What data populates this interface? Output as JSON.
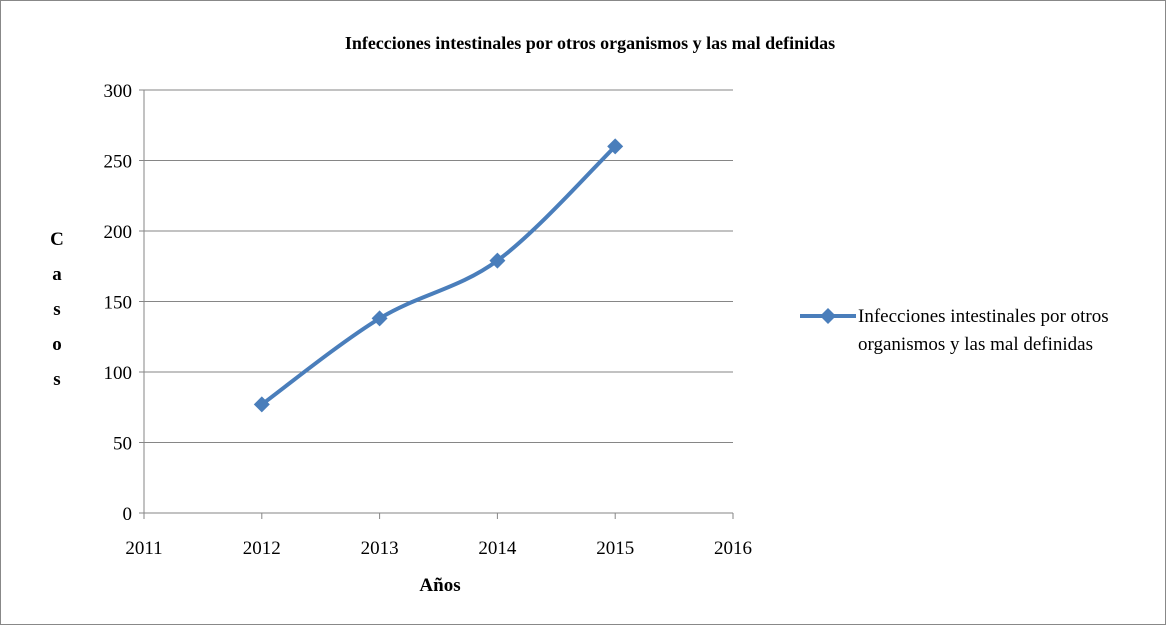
{
  "chart_data": {
    "type": "line",
    "title": "Infecciones intestinales por otros organismos y las mal definidas",
    "x_label": "Años",
    "y_label": "Casos",
    "x": [
      2012,
      2013,
      2014,
      2015
    ],
    "series": [
      {
        "name": "Infecciones intestinales por otros organismos y las mal definidas",
        "color": "#4a7ebb",
        "values": [
          77,
          138,
          179,
          260
        ]
      }
    ],
    "xlim": [
      2011,
      2016
    ],
    "xticks": [
      2011,
      2012,
      2013,
      2014,
      2015,
      2016
    ],
    "ylim": [
      0,
      300
    ],
    "yticks": [
      0,
      50,
      100,
      150,
      200,
      250,
      300
    ],
    "grid": true,
    "smooth": true,
    "legend": "right"
  }
}
